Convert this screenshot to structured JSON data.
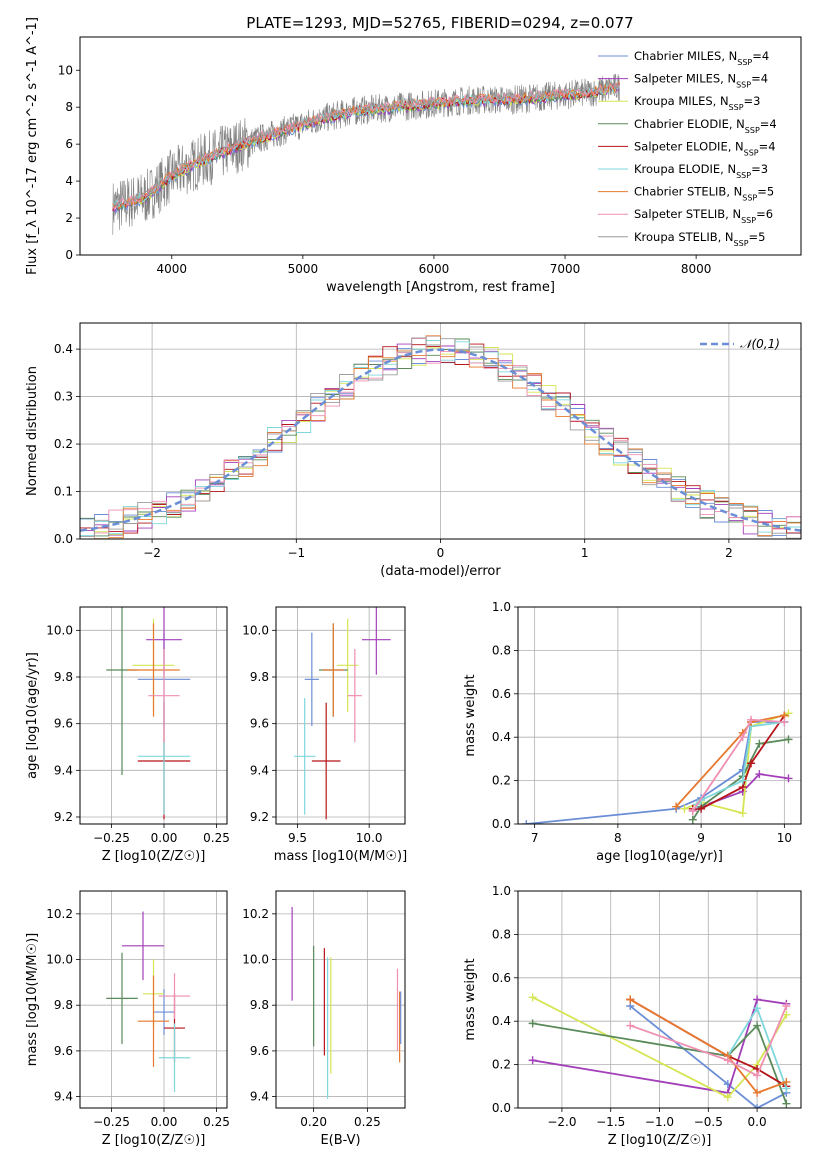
{
  "title": "PLATE=1293, MJD=52765, FIBERID=0294, z=0.077",
  "colors": {
    "series": [
      "#6b8ed6",
      "#a23fb9",
      "#d5e553",
      "#5a8a5a",
      "#b5151b",
      "#7fd7dc",
      "#e6792f",
      "#ef8fb2",
      "#9c9c9c"
    ],
    "data": "#808080",
    "grid": "#b0b0b0"
  },
  "chart_data": [
    {
      "type": "line",
      "id": "spectrum",
      "xlabel": "wavelength [Angstrom, rest frame]",
      "ylabel": "Flux [f_λ 10^-17 erg cm^-2 s^-1 A^-1]",
      "xlim": [
        3300,
        8800
      ],
      "ylim": [
        0,
        11.8
      ],
      "xticks": [
        4000,
        5000,
        6000,
        7000,
        8000
      ],
      "yticks": [
        0,
        2,
        4,
        6,
        8,
        10
      ],
      "grid": false,
      "legend_position": "right",
      "x": [
        3550,
        3800,
        4000,
        4200,
        4500,
        4800,
        5100,
        5400,
        5700,
        6000,
        6300,
        6600,
        6900,
        7200,
        7400
      ],
      "data_flux": [
        2.6,
        3.1,
        4.3,
        5.0,
        5.9,
        6.6,
        7.3,
        7.8,
        8.0,
        8.2,
        8.4,
        8.4,
        8.6,
        8.8,
        9.1
      ],
      "model_flux": [
        2.6,
        3.1,
        4.3,
        5.0,
        5.9,
        6.6,
        7.3,
        7.8,
        8.0,
        8.2,
        8.4,
        8.4,
        8.6,
        8.8,
        9.1
      ],
      "legend": [
        {
          "name": "Chabrier MILES",
          "nssp": "4"
        },
        {
          "name": "Salpeter MILES",
          "nssp": "4"
        },
        {
          "name": "Kroupa MILES",
          "nssp": "3"
        },
        {
          "name": "Chabrier ELODIE",
          "nssp": "4"
        },
        {
          "name": "Salpeter ELODIE",
          "nssp": "4"
        },
        {
          "name": "Kroupa ELODIE",
          "nssp": "3"
        },
        {
          "name": "Chabrier STELIB",
          "nssp": "5"
        },
        {
          "name": "Salpeter STELIB",
          "nssp": "6"
        },
        {
          "name": "Kroupa STELIB",
          "nssp": "5"
        }
      ]
    },
    {
      "type": "line",
      "id": "residuals",
      "xlabel": "(data-model)/error",
      "ylabel": "Normed distribution",
      "xlim": [
        -2.5,
        2.5
      ],
      "ylim": [
        0,
        0.455
      ],
      "xticks": [
        -2,
        -1,
        0,
        1,
        2
      ],
      "yticks": [
        0.0,
        0.1,
        0.2,
        0.3,
        0.4
      ],
      "grid": true,
      "legend_position": "top-right",
      "gaussian_label": "𝒩(0,1)"
    },
    {
      "type": "scatter",
      "id": "age_vs_Z",
      "xlabel": "Z [log10(Z/Z☉)]",
      "ylabel": "age [log10(age/yr)]",
      "xlim": [
        -0.4,
        0.3
      ],
      "ylim": [
        9.17,
        10.1
      ],
      "xticks": [
        -0.25,
        0.0,
        0.25
      ],
      "yticks": [
        9.2,
        9.4,
        9.6,
        9.8,
        10.0
      ],
      "grid": true,
      "crosses": [
        {
          "s": 0,
          "x": 0.0,
          "y": 9.79,
          "xerr": 0.25,
          "yerr": 0.2
        },
        {
          "s": 1,
          "x": 0.0,
          "y": 9.96,
          "xerr": 0.17,
          "yerr": 0.15
        },
        {
          "s": 2,
          "x": -0.05,
          "y": 9.85,
          "xerr": 0.2,
          "yerr": 0.2
        },
        {
          "s": 3,
          "x": -0.2,
          "y": 9.83,
          "xerr": 0.15,
          "yerr": 0.45
        },
        {
          "s": 4,
          "x": 0.0,
          "y": 9.44,
          "xerr": 0.25,
          "yerr": 0.25
        },
        {
          "s": 5,
          "x": 0.0,
          "y": 9.46,
          "xerr": 0.25,
          "yerr": 0.25
        },
        {
          "s": 6,
          "x": -0.05,
          "y": 9.83,
          "xerr": 0.25,
          "yerr": 0.2
        },
        {
          "s": 7,
          "x": 0.0,
          "y": 9.72,
          "xerr": 0.15,
          "yerr": 0.2
        }
      ]
    },
    {
      "type": "scatter",
      "id": "age_vs_mass",
      "xlabel": "mass [log10(M/M☉)]",
      "ylabel": "",
      "xlim": [
        9.35,
        10.25
      ],
      "ylim": [
        9.17,
        10.1
      ],
      "xticks": [
        9.5,
        10.0
      ],
      "yticks": [
        9.2,
        9.4,
        9.6,
        9.8,
        10.0
      ],
      "grid": true,
      "crosses": [
        {
          "s": 0,
          "x": 9.6,
          "y": 9.79,
          "xerr": 0.1,
          "yerr": 0.2
        },
        {
          "s": 1,
          "x": 10.05,
          "y": 9.96,
          "xerr": 0.2,
          "yerr": 0.15
        },
        {
          "s": 2,
          "x": 9.85,
          "y": 9.85,
          "xerr": 0.15,
          "yerr": 0.2
        },
        {
          "s": 3,
          "x": 9.75,
          "y": 9.83,
          "xerr": 0.2,
          "yerr": 0.2
        },
        {
          "s": 4,
          "x": 9.7,
          "y": 9.44,
          "xerr": 0.2,
          "yerr": 0.25
        },
        {
          "s": 5,
          "x": 9.55,
          "y": 9.46,
          "xerr": 0.15,
          "yerr": 0.25
        },
        {
          "s": 6,
          "x": 9.75,
          "y": 9.83,
          "xerr": 0.15,
          "yerr": 0.2
        },
        {
          "s": 7,
          "x": 9.9,
          "y": 9.72,
          "xerr": 0.1,
          "yerr": 0.2
        }
      ]
    },
    {
      "type": "line",
      "id": "mass_weight_vs_age",
      "xlabel": "age [log10(age/yr)]",
      "ylabel": "mass weight",
      "xlim": [
        6.8,
        10.2
      ],
      "ylim": [
        0,
        1.0
      ],
      "xticks": [
        7,
        8,
        9,
        10
      ],
      "yticks": [
        0.0,
        0.2,
        0.4,
        0.6,
        0.8,
        1.0
      ],
      "grid": true,
      "series": [
        {
          "s": 0,
          "x": [
            6.9,
            8.7,
            9.0,
            9.5,
            9.6,
            10.0
          ],
          "y": [
            0.0,
            0.07,
            0.12,
            0.25,
            0.47,
            0.47
          ]
        },
        {
          "s": 1,
          "x": [
            8.9,
            9.0,
            9.5,
            9.7,
            10.05
          ],
          "y": [
            0.06,
            0.08,
            0.15,
            0.23,
            0.21
          ]
        },
        {
          "s": 2,
          "x": [
            8.8,
            9.0,
            9.5,
            9.6,
            10.05
          ],
          "y": [
            0.07,
            0.1,
            0.05,
            0.45,
            0.51
          ]
        },
        {
          "s": 3,
          "x": [
            8.9,
            9.0,
            9.5,
            9.7,
            10.05
          ],
          "y": [
            0.02,
            0.08,
            0.22,
            0.37,
            0.39
          ]
        },
        {
          "s": 4,
          "x": [
            8.9,
            9.0,
            9.5,
            9.6,
            10.0
          ],
          "y": [
            0.07,
            0.07,
            0.17,
            0.28,
            0.5
          ]
        },
        {
          "s": 5,
          "x": [
            8.95,
            9.0,
            9.5,
            9.6,
            10.0
          ],
          "y": [
            0.09,
            0.11,
            0.2,
            0.45,
            0.47
          ]
        },
        {
          "s": 6,
          "x": [
            8.7,
            9.5,
            9.6,
            10.0
          ],
          "y": [
            0.08,
            0.42,
            0.47,
            0.5
          ]
        },
        {
          "s": 7,
          "x": [
            8.9,
            9.5,
            9.6,
            10.0
          ],
          "y": [
            0.06,
            0.4,
            0.48,
            0.47
          ]
        }
      ]
    },
    {
      "type": "scatter",
      "id": "mass_vs_Z",
      "xlabel": "Z [log10(Z/Z☉)]",
      "ylabel": "mass [log10(M/M☉)]",
      "xlim": [
        -0.4,
        0.3
      ],
      "ylim": [
        9.35,
        10.3
      ],
      "xticks": [
        -0.25,
        0.0,
        0.25
      ],
      "yticks": [
        9.4,
        9.6,
        9.8,
        10.0,
        10.2
      ],
      "grid": true,
      "crosses": [
        {
          "s": 0,
          "x": 0.0,
          "y": 9.77,
          "xerr": 0.1,
          "yerr": 0.1
        },
        {
          "s": 1,
          "x": -0.1,
          "y": 10.06,
          "xerr": 0.2,
          "yerr": 0.15
        },
        {
          "s": 2,
          "x": -0.05,
          "y": 9.85,
          "xerr": 0.1,
          "yerr": 0.15
        },
        {
          "s": 3,
          "x": -0.2,
          "y": 9.83,
          "xerr": 0.15,
          "yerr": 0.2
        },
        {
          "s": 4,
          "x": 0.05,
          "y": 9.7,
          "xerr": 0.1,
          "yerr": 0.15
        },
        {
          "s": 5,
          "x": 0.05,
          "y": 9.57,
          "xerr": 0.15,
          "yerr": 0.15
        },
        {
          "s": 6,
          "x": -0.05,
          "y": 9.73,
          "xerr": 0.15,
          "yerr": 0.2
        },
        {
          "s": 7,
          "x": 0.05,
          "y": 9.84,
          "xerr": 0.15,
          "yerr": 0.1
        }
      ]
    },
    {
      "type": "scatter",
      "id": "mass_vs_ebv",
      "xlabel": "E(B-V)",
      "ylabel": "",
      "xlim": [
        0.165,
        0.285
      ],
      "ylim": [
        9.35,
        10.3
      ],
      "xticks": [
        0.2,
        0.25
      ],
      "yticks": [
        9.4,
        9.6,
        9.8,
        10.0,
        10.2
      ],
      "grid": true,
      "verticals": [
        {
          "s": 1,
          "x": 0.18,
          "y0": 9.82,
          "y1": 10.23
        },
        {
          "s": 3,
          "x": 0.2,
          "y0": 9.62,
          "y1": 10.06
        },
        {
          "s": 4,
          "x": 0.21,
          "y0": 9.58,
          "y1": 10.05
        },
        {
          "s": 5,
          "x": 0.213,
          "y0": 9.39,
          "y1": 10.01
        },
        {
          "s": 2,
          "x": 0.216,
          "y0": 9.5,
          "y1": 10.01
        },
        {
          "s": 7,
          "x": 0.278,
          "y0": 9.6,
          "y1": 9.96
        },
        {
          "s": 6,
          "x": 0.28,
          "y0": 9.55,
          "y1": 9.86
        },
        {
          "s": 0,
          "x": 0.281,
          "y0": 9.63,
          "y1": 9.86
        }
      ]
    },
    {
      "type": "line",
      "id": "mass_weight_vs_Z",
      "xlabel": "Z [log10(Z/Z☉)]",
      "ylabel": "mass weight",
      "xlim": [
        -2.45,
        0.45
      ],
      "ylim": [
        0,
        1.0
      ],
      "xticks": [
        -2.0,
        -1.5,
        -1.0,
        -0.5,
        0.0
      ],
      "yticks": [
        0.0,
        0.2,
        0.4,
        0.6,
        0.8,
        1.0
      ],
      "grid": true,
      "series": [
        {
          "s": 0,
          "x": [
            -1.3,
            -0.3,
            0.0,
            0.3
          ],
          "y": [
            0.47,
            0.11,
            0.0,
            0.07
          ]
        },
        {
          "s": 1,
          "x": [
            -2.3,
            -0.3,
            0.0,
            0.3
          ],
          "y": [
            0.22,
            0.07,
            0.5,
            0.48
          ]
        },
        {
          "s": 2,
          "x": [
            -2.3,
            -0.3,
            0.0,
            0.3
          ],
          "y": [
            0.51,
            0.05,
            0.2,
            0.43
          ]
        },
        {
          "s": 3,
          "x": [
            -2.3,
            -0.3,
            0.0,
            0.3
          ],
          "y": [
            0.39,
            0.24,
            0.38,
            0.02
          ]
        },
        {
          "s": 4,
          "x": [
            -1.3,
            -0.3,
            0.0,
            0.3
          ],
          "y": [
            0.5,
            0.24,
            0.18,
            0.1
          ]
        },
        {
          "s": 5,
          "x": [
            -0.3,
            0.0,
            0.3
          ],
          "y": [
            0.24,
            0.46,
            0.09
          ]
        },
        {
          "s": 6,
          "x": [
            -1.3,
            -0.3,
            0.0,
            0.3
          ],
          "y": [
            0.5,
            0.24,
            0.07,
            0.12
          ]
        },
        {
          "s": 7,
          "x": [
            -1.3,
            -0.3,
            0.0,
            0.3
          ],
          "y": [
            0.38,
            0.22,
            0.15,
            0.47
          ]
        }
      ]
    }
  ]
}
